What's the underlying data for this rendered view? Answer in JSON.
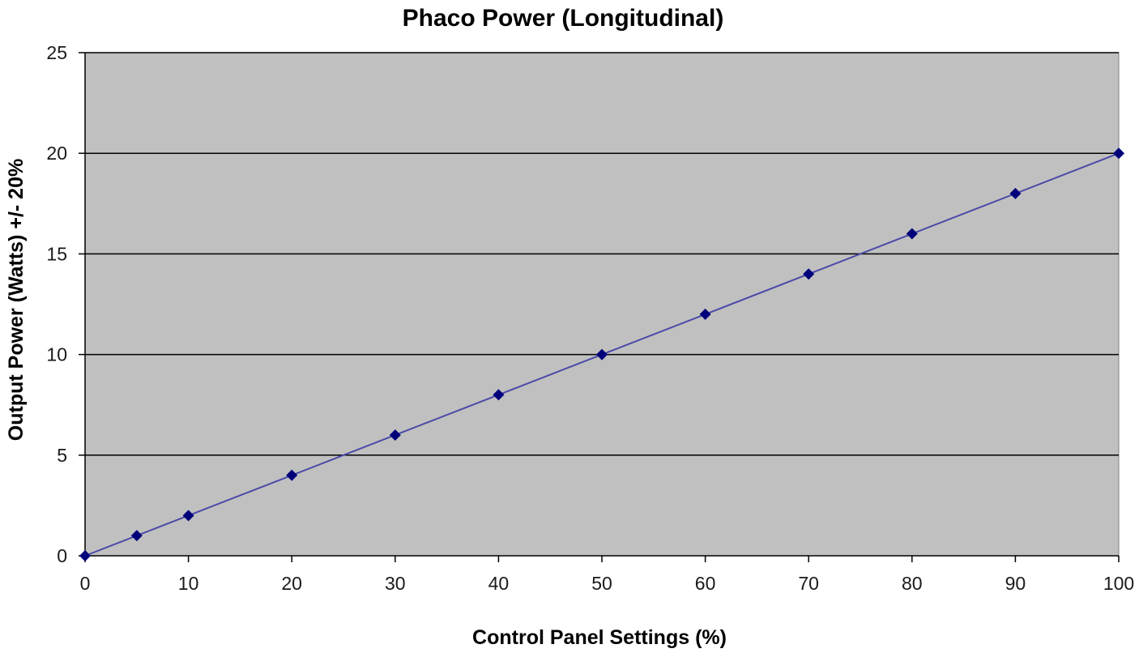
{
  "chart_data": {
    "type": "line",
    "title": "Phaco Power (Longitudinal)",
    "xlabel": "Control Panel Settings (%)",
    "ylabel": "Output Power (Watts) +/- 20%",
    "x": [
      0,
      5,
      10,
      20,
      30,
      40,
      50,
      60,
      70,
      80,
      90,
      100
    ],
    "series": [
      {
        "values": [
          0,
          1,
          2,
          4,
          6,
          8,
          10,
          12,
          14,
          16,
          18,
          20
        ]
      }
    ],
    "xlim": [
      0,
      100
    ],
    "ylim": [
      0,
      25
    ],
    "xticks": [
      0,
      10,
      20,
      30,
      40,
      50,
      60,
      70,
      80,
      90,
      100
    ],
    "yticks": [
      0,
      5,
      10,
      15,
      20,
      25
    ],
    "grid": "horizontal",
    "legend": "none",
    "colors": {
      "plot_background": "#c0c0c0",
      "gridline": "#000000",
      "series_line": "#4a4aa8",
      "marker": "#00007a"
    }
  }
}
